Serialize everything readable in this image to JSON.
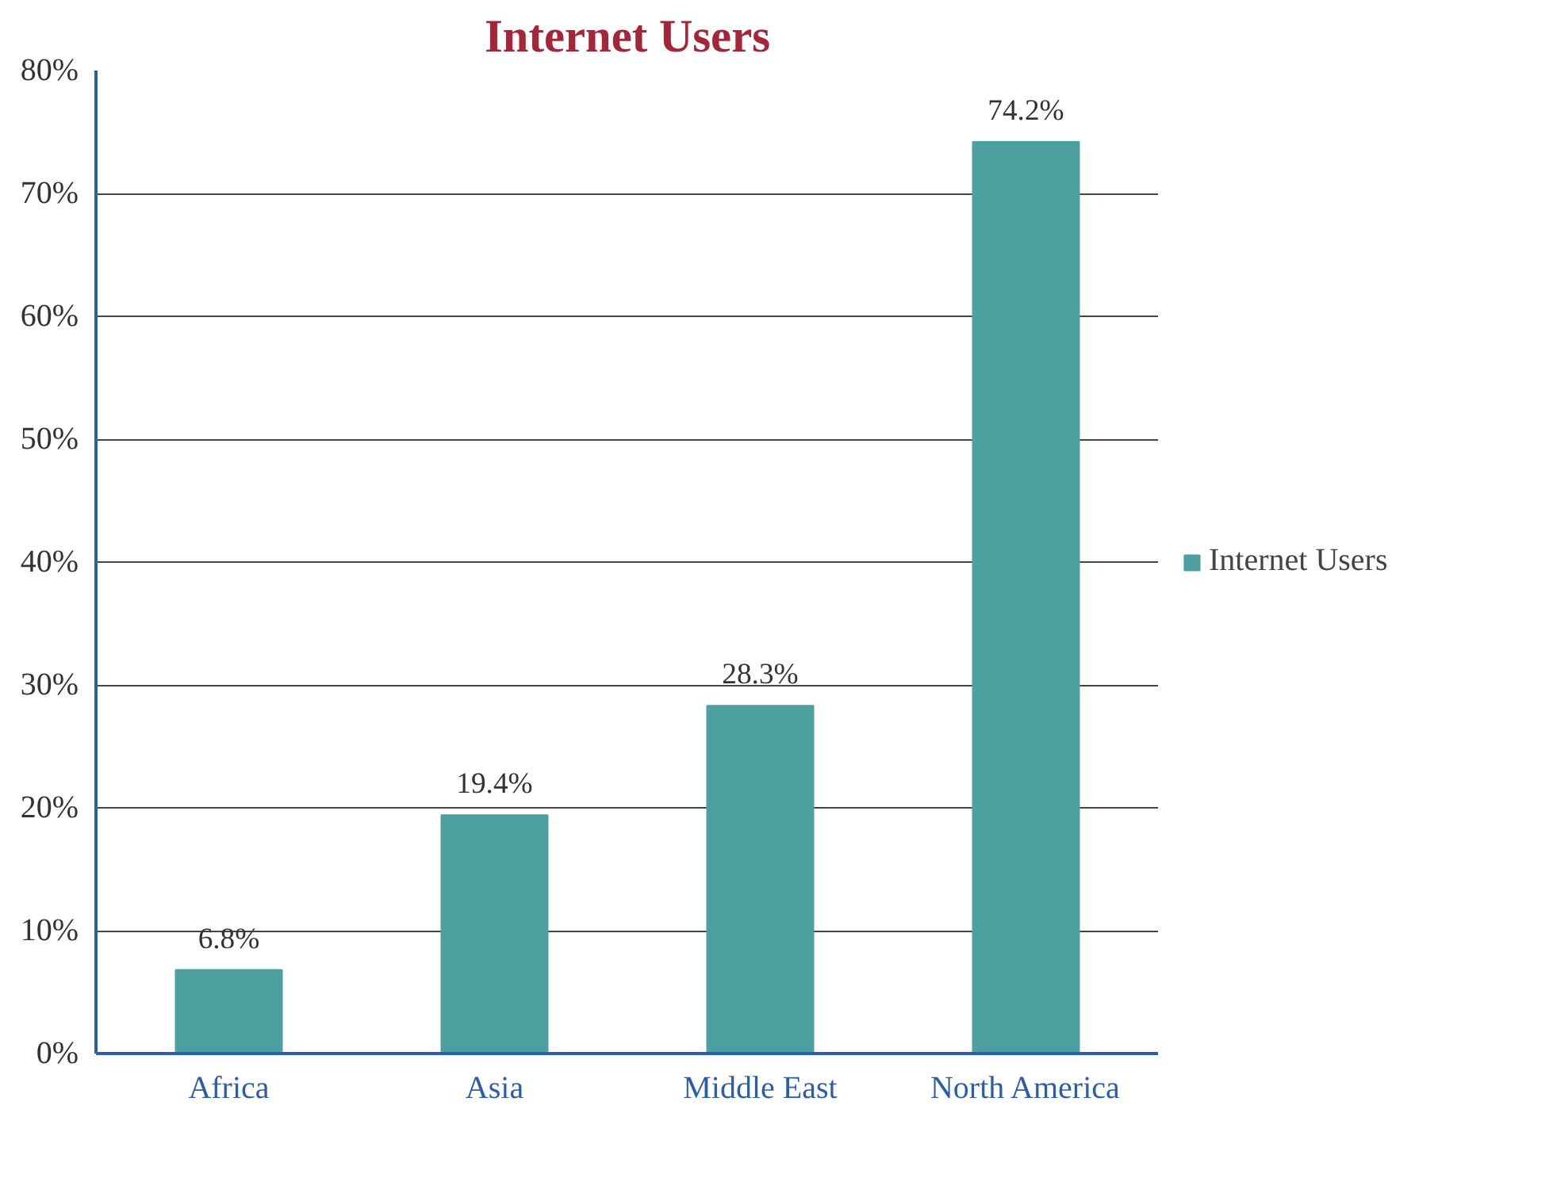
{
  "chart_data": {
    "type": "bar",
    "title": "Internet Users",
    "categories": [
      "Africa",
      "Asia",
      "Middle East",
      "North America"
    ],
    "series": [
      {
        "name": "Internet Users",
        "color": "#4e9fa0",
        "values": [
          6.8,
          19.4,
          28.3,
          74.2
        ],
        "value_labels": [
          "6.8%",
          "19.4%",
          "28.3%",
          "74.2%"
        ]
      }
    ],
    "ylim": [
      0,
      80
    ],
    "yticks": [
      {
        "value": 0,
        "label": "0%"
      },
      {
        "value": 10,
        "label": "10%"
      },
      {
        "value": 20,
        "label": "20%"
      },
      {
        "value": 30,
        "label": "30%"
      },
      {
        "value": 40,
        "label": "40%"
      },
      {
        "value": 50,
        "label": "50%"
      },
      {
        "value": 60,
        "label": "60%"
      },
      {
        "value": 70,
        "label": "70%"
      },
      {
        "value": 80,
        "label": "80%"
      }
    ],
    "grid": "y",
    "legend": "right"
  }
}
